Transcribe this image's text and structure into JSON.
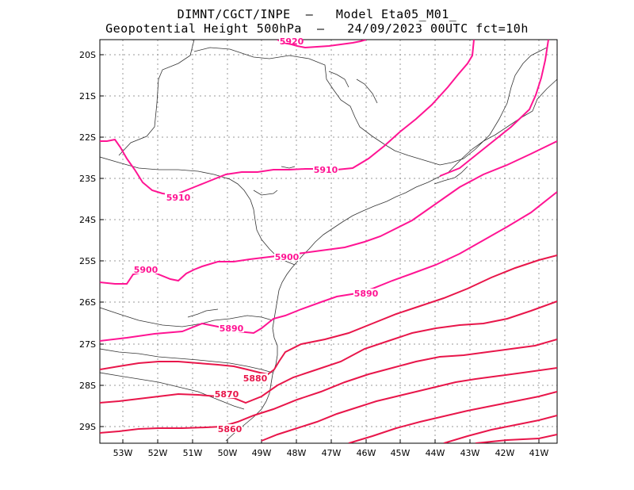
{
  "title_line1": "DIMNT/CGCT/INPE  –   Model Eta05_M01_",
  "title_line2": "Geopotential Height 500hPa  –   24/09/2023 00UTC fct=10h",
  "colors": {
    "contour_pink": "#ff1493",
    "contour_red": "#e8164a",
    "coast": "#333333",
    "grid": "#999999"
  },
  "axes": {
    "lat_labels": [
      "20S",
      "21S",
      "22S",
      "23S",
      "24S",
      "25S",
      "26S",
      "27S",
      "28S",
      "29S"
    ],
    "lon_labels": [
      "53W",
      "52W",
      "51W",
      "50W",
      "49W",
      "48W",
      "47W",
      "46W",
      "45W",
      "44W",
      "43W",
      "42W",
      "41W"
    ]
  },
  "contour_labels": [
    {
      "text": "5920"
    },
    {
      "text": "5910"
    },
    {
      "text": "5910"
    },
    {
      "text": "5900"
    },
    {
      "text": "5900"
    },
    {
      "text": "5890"
    },
    {
      "text": "5890"
    },
    {
      "text": "5880"
    },
    {
      "text": "5870"
    },
    {
      "text": "5860"
    }
  ]
}
